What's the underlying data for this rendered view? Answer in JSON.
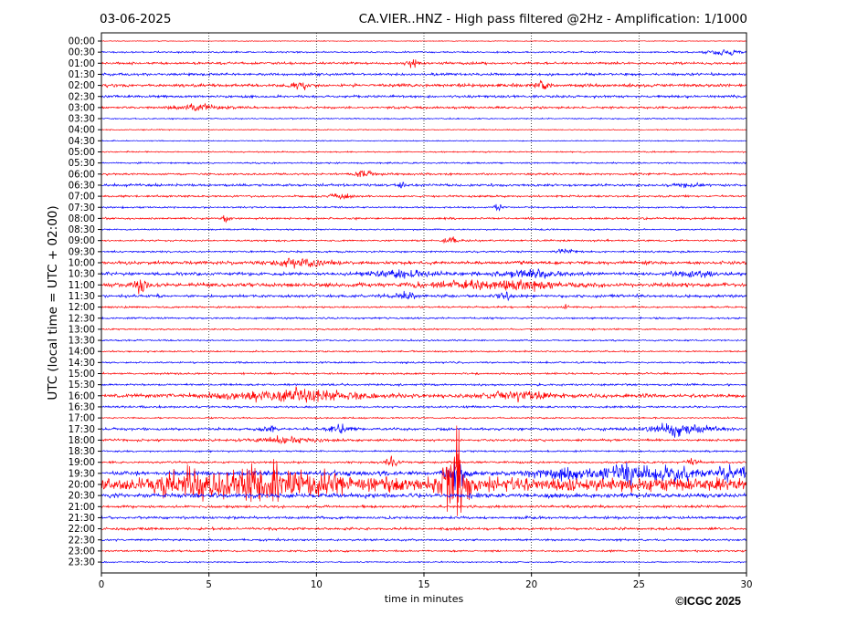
{
  "chart_data": {
    "type": "line",
    "date": "03-06-2025",
    "title": "CA.VIER..HNZ - High pass filtered @2Hz - Amplification: 1/1000",
    "xlabel": "time in minutes",
    "ylabel": "UTC (local time = UTC + 02:00)",
    "xlim": [
      0,
      30
    ],
    "x_ticks": [
      0,
      5,
      10,
      15,
      20,
      25,
      30
    ],
    "grid_x": true,
    "trace_colors": [
      "#ff0000",
      "#0000ff"
    ],
    "row_labels": [
      "00:00",
      "00:30",
      "01:00",
      "01:30",
      "02:00",
      "02:30",
      "03:00",
      "03:30",
      "04:00",
      "04:30",
      "05:00",
      "05:30",
      "06:00",
      "06:30",
      "07:00",
      "07:30",
      "08:00",
      "08:30",
      "09:00",
      "09:30",
      "10:00",
      "10:30",
      "11:00",
      "11:30",
      "12:00",
      "12:30",
      "13:00",
      "13:30",
      "14:00",
      "14:30",
      "15:00",
      "15:30",
      "16:00",
      "16:30",
      "17:00",
      "17:30",
      "18:00",
      "18:30",
      "19:00",
      "19:30",
      "20:00",
      "20:30",
      "21:00",
      "21:30",
      "22:00",
      "22:30",
      "23:00",
      "23:30"
    ],
    "row_noise": [
      0.3,
      0.6,
      0.9,
      1.0,
      1.2,
      1.0,
      0.9,
      0.5,
      0.4,
      0.4,
      0.5,
      0.6,
      0.8,
      1.0,
      0.8,
      0.7,
      0.8,
      0.6,
      0.7,
      0.7,
      1.3,
      1.3,
      1.6,
      1.1,
      0.7,
      0.7,
      0.6,
      0.6,
      0.6,
      0.7,
      0.7,
      0.8,
      1.4,
      0.8,
      0.6,
      1.0,
      0.9,
      0.7,
      0.8,
      1.8,
      5.5,
      1.8,
      1.0,
      1.0,
      1.0,
      0.8,
      0.7,
      0.5
    ],
    "events": [
      {
        "row": 1,
        "x": 29.2,
        "amp": 1.5,
        "dur": 1.2
      },
      {
        "row": 2,
        "x": 14.5,
        "amp": 3,
        "dur": 0.3
      },
      {
        "row": 4,
        "x": 9.2,
        "amp": 3,
        "dur": 0.3
      },
      {
        "row": 4,
        "x": 20.5,
        "amp": 3,
        "dur": 0.4
      },
      {
        "row": 6,
        "x": 4.5,
        "amp": 2,
        "dur": 1.0
      },
      {
        "row": 12,
        "x": 12.2,
        "amp": 3,
        "dur": 0.4
      },
      {
        "row": 13,
        "x": 14.0,
        "amp": 4,
        "dur": 0.15
      },
      {
        "row": 13,
        "x": 27.3,
        "amp": 2,
        "dur": 0.5
      },
      {
        "row": 14,
        "x": 11.0,
        "amp": 2,
        "dur": 0.6
      },
      {
        "row": 15,
        "x": 18.5,
        "amp": 3,
        "dur": 0.2
      },
      {
        "row": 16,
        "x": 5.7,
        "amp": 4,
        "dur": 0.15
      },
      {
        "row": 18,
        "x": 16.2,
        "amp": 3,
        "dur": 0.3
      },
      {
        "row": 19,
        "x": 21.5,
        "amp": 2,
        "dur": 0.4
      },
      {
        "row": 20,
        "x": 9.2,
        "amp": 3,
        "dur": 1.2
      },
      {
        "row": 21,
        "x": 14.0,
        "amp": 2,
        "dur": 1.5
      },
      {
        "row": 21,
        "x": 20.0,
        "amp": 2,
        "dur": 1.5
      },
      {
        "row": 21,
        "x": 27.5,
        "amp": 2,
        "dur": 1.0
      },
      {
        "row": 22,
        "x": 1.8,
        "amp": 5,
        "dur": 0.3
      },
      {
        "row": 22,
        "x": 18.5,
        "amp": 3,
        "dur": 3.0
      },
      {
        "row": 23,
        "x": 14.2,
        "amp": 3,
        "dur": 0.5
      },
      {
        "row": 23,
        "x": 18.8,
        "amp": 3,
        "dur": 0.3
      },
      {
        "row": 24,
        "x": 21.6,
        "amp": 3,
        "dur": 0.1
      },
      {
        "row": 32,
        "x": 9.0,
        "amp": 5,
        "dur": 3.0
      },
      {
        "row": 32,
        "x": 19.5,
        "amp": 3,
        "dur": 1.5
      },
      {
        "row": 35,
        "x": 7.8,
        "amp": 3,
        "dur": 0.3
      },
      {
        "row": 35,
        "x": 11.0,
        "amp": 3,
        "dur": 0.5
      },
      {
        "row": 35,
        "x": 26.8,
        "amp": 4,
        "dur": 1.5
      },
      {
        "row": 36,
        "x": 8.5,
        "amp": 2,
        "dur": 1.5
      },
      {
        "row": 38,
        "x": 13.5,
        "amp": 3,
        "dur": 0.3
      },
      {
        "row": 38,
        "x": 27.5,
        "amp": 3,
        "dur": 0.3
      },
      {
        "row": 39,
        "x": 16.5,
        "amp": 10,
        "dur": 0.4
      },
      {
        "row": 39,
        "x": 22.0,
        "amp": 4,
        "dur": 2.0
      },
      {
        "row": 39,
        "x": 24.5,
        "amp": 5,
        "dur": 1.0
      },
      {
        "row": 39,
        "x": 26.5,
        "amp": 5,
        "dur": 1.0
      },
      {
        "row": 39,
        "x": 29.5,
        "amp": 5,
        "dur": 1.0
      },
      {
        "row": 40,
        "x": 7.5,
        "amp": 10,
        "dur": 3.0
      },
      {
        "row": 40,
        "x": 4.0,
        "amp": 6,
        "dur": 1.0
      },
      {
        "row": 40,
        "x": 16.5,
        "amp": 28,
        "dur": 0.5
      }
    ]
  },
  "copyright": "©ICGC 2025"
}
